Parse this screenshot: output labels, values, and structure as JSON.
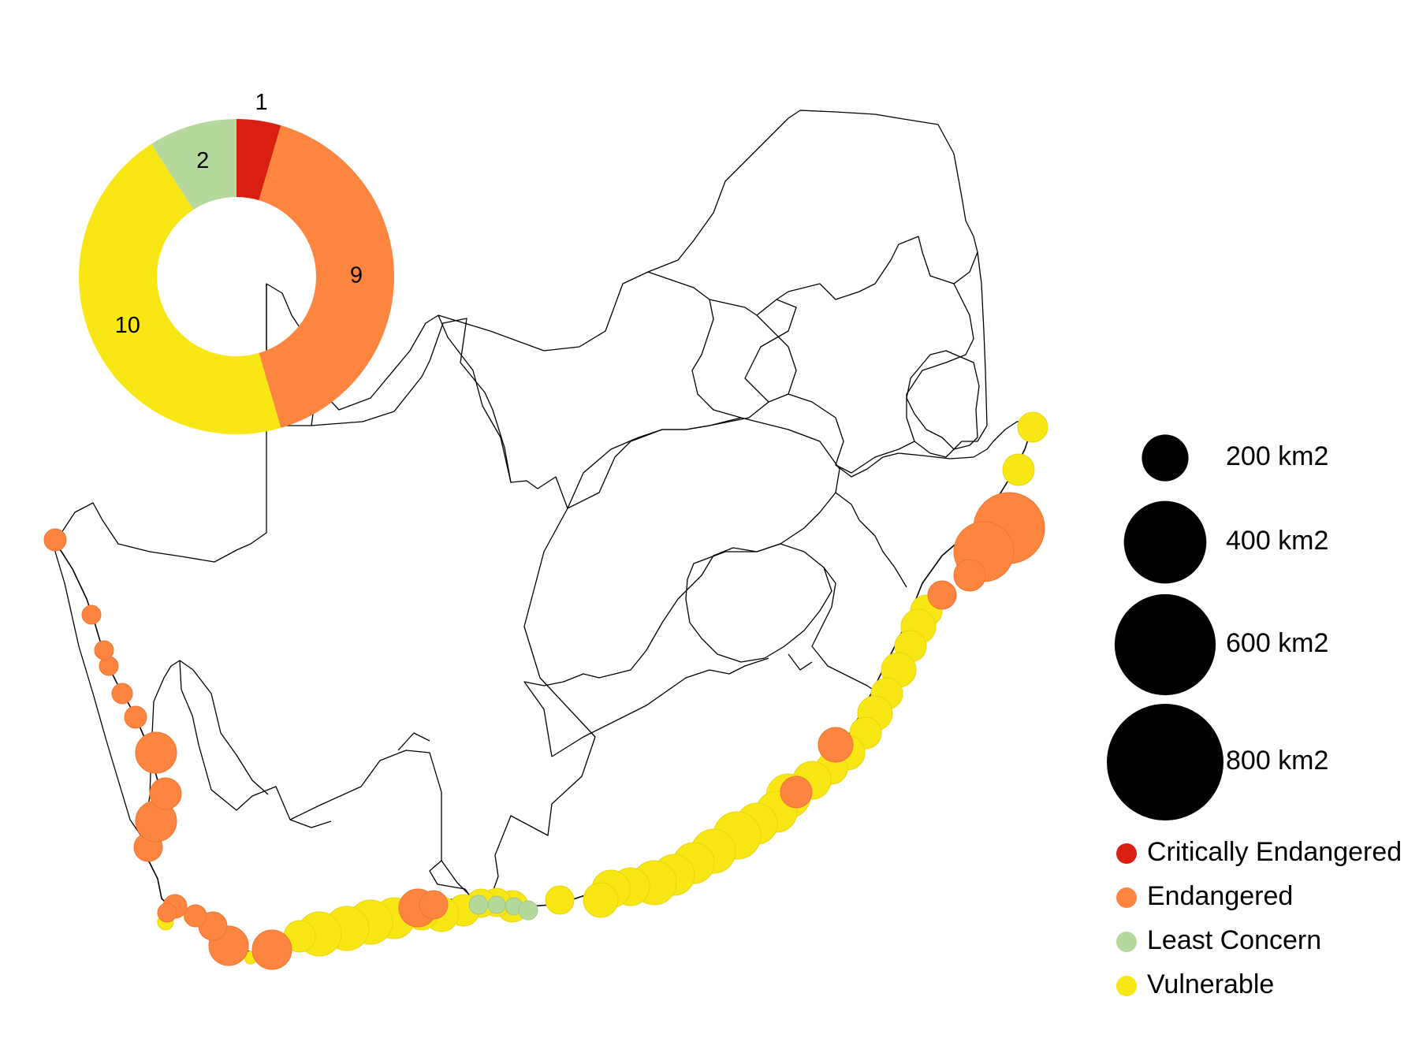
{
  "colors": {
    "critically_endangered": "#d92010",
    "endangered": "#fe8540",
    "least_concern": "#b5d99c",
    "vulnerable": "#f9e715",
    "size_symbol": "#000000",
    "border": "#000000"
  },
  "donut": {
    "segments": [
      {
        "category": "critically_endangered",
        "value": 1,
        "label": "1"
      },
      {
        "category": "endangered",
        "value": 9,
        "label": "9"
      },
      {
        "category": "vulnerable",
        "value": 10,
        "label": "10"
      },
      {
        "category": "least_concern",
        "value": 2,
        "label": "2"
      }
    ]
  },
  "size_legend": [
    {
      "value": 200,
      "label": "200 km2"
    },
    {
      "value": 400,
      "label": "400 km2"
    },
    {
      "value": 600,
      "label": "600 km2"
    },
    {
      "value": 800,
      "label": "800 km2"
    }
  ],
  "status_legend": [
    {
      "category": "critically_endangered",
      "label": "Critically Endangered"
    },
    {
      "category": "endangered",
      "label": "Endangered"
    },
    {
      "category": "least_concern",
      "label": "Least Concern"
    },
    {
      "category": "vulnerable",
      "label": "Vulnerable"
    }
  ]
}
